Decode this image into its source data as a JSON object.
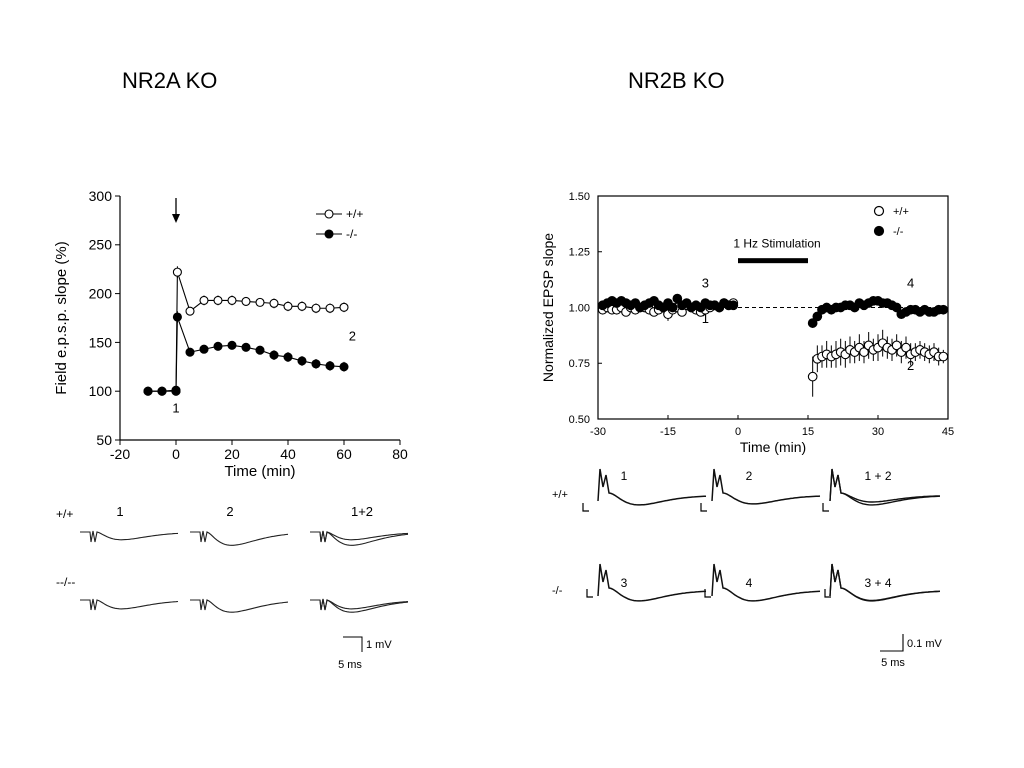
{
  "slide": {
    "left_title": "NR2A KO",
    "right_title": "NR2B KO"
  },
  "chart_data": [
    {
      "type": "line",
      "xlabel": "Time (min)",
      "ylabel": "Field e.p.s.p. slope (%)",
      "xlim": [
        -20,
        80
      ],
      "ylim": [
        50,
        300
      ],
      "xticks": [
        -20,
        0,
        20,
        40,
        60,
        80
      ],
      "yticks": [
        50,
        100,
        150,
        200,
        250,
        300
      ],
      "legend_placement": "top-right",
      "series": [
        {
          "name": "+/+",
          "marker": "open-circle",
          "x": [
            -10,
            -5,
            0,
            0,
            0.5,
            5,
            10,
            15,
            20,
            25,
            30,
            35,
            40,
            45,
            50,
            55,
            60
          ],
          "y": [
            100,
            100,
            100,
            100,
            222,
            182,
            193,
            193,
            193,
            192,
            191,
            190,
            187,
            187,
            185,
            185,
            186
          ],
          "err": [
            0,
            0,
            0,
            0,
            6,
            4,
            5,
            5,
            5,
            4,
            4,
            5,
            5,
            5,
            5,
            5,
            5
          ]
        },
        {
          "name": "-/-",
          "marker": "filled-circle",
          "x": [
            -10,
            -5,
            0,
            0.5,
            5,
            10,
            15,
            20,
            25,
            30,
            35,
            40,
            45,
            50,
            55,
            60
          ],
          "y": [
            100,
            100,
            101,
            176,
            140,
            143,
            146,
            147,
            145,
            142,
            137,
            135,
            131,
            128,
            126,
            125
          ],
          "err": [
            0,
            0,
            0,
            6,
            4,
            4,
            4,
            4,
            4,
            4,
            5,
            5,
            5,
            5,
            5,
            5
          ]
        }
      ],
      "annotations": [
        {
          "text": "1",
          "x": 0,
          "y": 78
        },
        {
          "text": "2",
          "x": 63,
          "y": 152
        }
      ],
      "stimulus_arrow_x": 0,
      "traces": {
        "row_labels": [
          "+/+",
          "--/--"
        ],
        "col_labels": [
          "1",
          "2",
          "1+2"
        ],
        "scale_amp": "1 mV",
        "scale_time": "5 ms"
      }
    },
    {
      "type": "scatter",
      "xlabel": "Time (min)",
      "ylabel": "Normalized EPSP slope",
      "xlim": [
        -30,
        45
      ],
      "ylim": [
        0.5,
        1.5
      ],
      "xticks": [
        -30,
        -15,
        0,
        15,
        30,
        45
      ],
      "yticks": [
        "0.50",
        "0.75",
        "1.00",
        "1.25",
        "1.50"
      ],
      "baseline": 1.0,
      "legend_placement": "top-right",
      "stimulation": {
        "label": "1 Hz  Stimulation",
        "x_start": 0,
        "x_end": 15,
        "y": 1.21
      },
      "series": [
        {
          "name": "+/+",
          "marker": "open-circle",
          "x": [
            -29,
            -28,
            -27,
            -26,
            -25,
            -24,
            -23,
            -22,
            -21,
            -20,
            -19,
            -18,
            -17,
            -16,
            -15,
            -14,
            -13,
            -12,
            -11,
            -10,
            -9,
            -8,
            -7,
            -6,
            -5,
            -4,
            -3,
            -2,
            -1,
            16,
            17,
            18,
            19,
            20,
            21,
            22,
            23,
            24,
            25,
            26,
            27,
            28,
            29,
            30,
            31,
            32,
            33,
            34,
            35,
            36,
            37,
            38,
            39,
            40,
            41,
            42,
            43,
            44
          ],
          "y": [
            0.99,
            1.0,
            0.99,
            0.99,
            1.0,
            0.98,
            1.0,
            0.99,
            1.0,
            1.0,
            0.99,
            0.98,
            0.99,
            1.0,
            0.97,
            0.99,
            1.0,
            0.98,
            1.01,
            1.0,
            0.99,
            0.98,
            0.99,
            1.0,
            1.01,
            1.0,
            1.02,
            1.01,
            1.02,
            0.69,
            0.77,
            0.78,
            0.79,
            0.78,
            0.79,
            0.8,
            0.79,
            0.81,
            0.8,
            0.82,
            0.8,
            0.83,
            0.81,
            0.82,
            0.84,
            0.82,
            0.81,
            0.83,
            0.8,
            0.82,
            0.79,
            0.8,
            0.81,
            0.8,
            0.79,
            0.8,
            0.78,
            0.78
          ],
          "err": [
            0.01,
            0.01,
            0.01,
            0.01,
            0.01,
            0.01,
            0.01,
            0.01,
            0.01,
            0.01,
            0.01,
            0.01,
            0.01,
            0.01,
            0.03,
            0.01,
            0.01,
            0.01,
            0.01,
            0.01,
            0.01,
            0.01,
            0.01,
            0.01,
            0.01,
            0.01,
            0.01,
            0.01,
            0.01,
            0.09,
            0.06,
            0.05,
            0.06,
            0.05,
            0.06,
            0.06,
            0.06,
            0.06,
            0.05,
            0.06,
            0.05,
            0.06,
            0.05,
            0.06,
            0.06,
            0.05,
            0.05,
            0.05,
            0.05,
            0.05,
            0.05,
            0.04,
            0.04,
            0.04,
            0.04,
            0.04,
            0.04,
            0.03
          ]
        },
        {
          "name": "-/-",
          "marker": "filled-circle",
          "x": [
            -29,
            -28,
            -27,
            -26,
            -25,
            -24,
            -23,
            -22,
            -21,
            -20,
            -19,
            -18,
            -17,
            -16,
            -15,
            -14,
            -13,
            -12,
            -11,
            -10,
            -9,
            -8,
            -7,
            -6,
            -5,
            -4,
            -3,
            -2,
            -1,
            16,
            17,
            18,
            19,
            20,
            21,
            22,
            23,
            24,
            25,
            26,
            27,
            28,
            29,
            30,
            31,
            32,
            33,
            34,
            35,
            36,
            37,
            38,
            39,
            40,
            41,
            42,
            43,
            44
          ],
          "y": [
            1.01,
            1.02,
            1.03,
            1.02,
            1.03,
            1.02,
            1.01,
            1.02,
            1.0,
            1.01,
            1.02,
            1.03,
            1.01,
            1.0,
            1.02,
            1.0,
            1.04,
            1.01,
            1.02,
            1.0,
            1.01,
            1.0,
            1.02,
            1.01,
            1.01,
            1.0,
            1.02,
            1.01,
            1.01,
            0.93,
            0.96,
            0.99,
            1.0,
            0.99,
            1.0,
            1.0,
            1.01,
            1.01,
            1.0,
            1.02,
            1.01,
            1.02,
            1.03,
            1.03,
            1.02,
            1.02,
            1.01,
            1.0,
            0.97,
            0.98,
            0.99,
            0.99,
            0.98,
            0.99,
            0.98,
            0.98,
            0.99,
            0.99
          ],
          "err": [
            0.01,
            0.01,
            0.01,
            0.01,
            0.01,
            0.01,
            0.01,
            0.01,
            0.01,
            0.01,
            0.01,
            0.01,
            0.01,
            0.01,
            0.01,
            0.01,
            0.01,
            0.01,
            0.01,
            0.01,
            0.01,
            0.01,
            0.01,
            0.01,
            0.01,
            0.01,
            0.01,
            0.01,
            0.01,
            0.02,
            0.02,
            0.02,
            0.02,
            0.02,
            0.02,
            0.02,
            0.02,
            0.02,
            0.02,
            0.02,
            0.02,
            0.02,
            0.02,
            0.02,
            0.02,
            0.02,
            0.02,
            0.02,
            0.02,
            0.02,
            0.02,
            0.02,
            0.02,
            0.02,
            0.02,
            0.02,
            0.02,
            0.02
          ]
        }
      ],
      "annotations": [
        {
          "text": "3",
          "x": -7,
          "y": 1.09
        },
        {
          "text": "1",
          "x": -7,
          "y": 0.93
        },
        {
          "text": "4",
          "x": 37,
          "y": 1.09
        },
        {
          "text": "2",
          "x": 37,
          "y": 0.72
        }
      ],
      "traces": {
        "row_labels": [
          "+/+",
          "-/-"
        ],
        "col_labels": [
          "1",
          "2",
          "1 + 2",
          "3",
          "4",
          "3 + 4"
        ],
        "scale_amp": "0.1 mV",
        "scale_time": "5 ms"
      }
    }
  ]
}
